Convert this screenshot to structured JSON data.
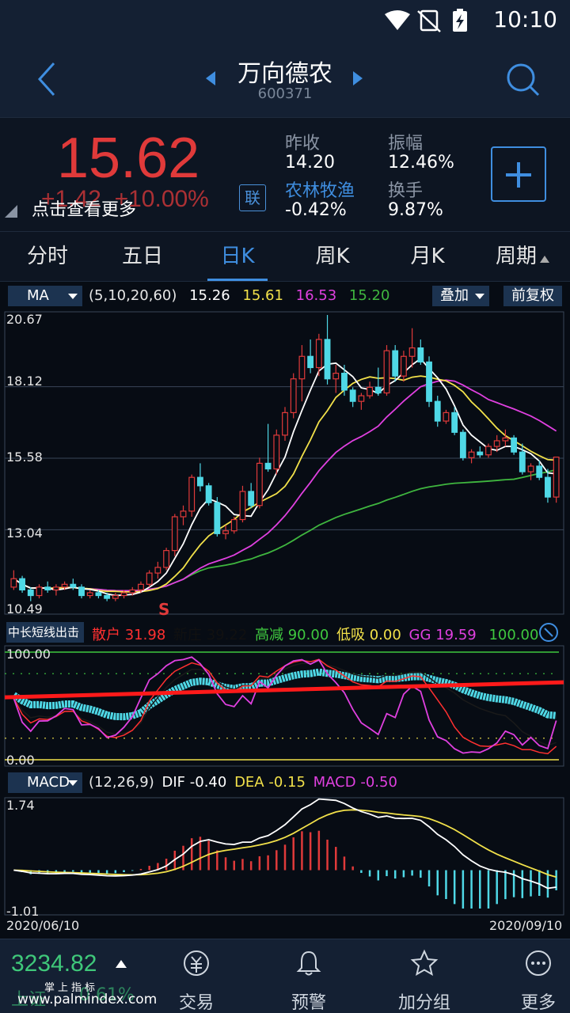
{
  "status_bar": {
    "time": "10:10"
  },
  "header": {
    "title": "万向德农",
    "code": "600371"
  },
  "quote": {
    "price": "15.62",
    "change": "+1.42",
    "change_pct": "+10.00%",
    "more_link": "点击查看更多",
    "link_button": "联",
    "prev_close_label": "昨收",
    "prev_close": "14.20",
    "amplitude_label": "振幅",
    "amplitude": "12.46%",
    "sector_label": "农林牧渔",
    "sector_change": "-0.42%",
    "turnover_label": "换手",
    "turnover": "9.87%"
  },
  "tabs": [
    "分时",
    "五日",
    "日K",
    "周K",
    "月K",
    "周期"
  ],
  "active_tab": "日K",
  "ma_panel": {
    "selector": "MA",
    "params": "(5,10,20,60)",
    "values": [
      "15.26",
      "15.61",
      "16.53",
      "15.20"
    ],
    "colors": [
      "#ffffff",
      "#f2e14a",
      "#e040e0",
      "#3fb63f"
    ],
    "overlay_button": "叠加",
    "adjust_button": "前复权",
    "y_labels": [
      "20.67",
      "18.12",
      "15.58",
      "13.04",
      "10.49"
    ],
    "signal_label": "S"
  },
  "indicator_panel": {
    "selector": "中长短线出击",
    "items": [
      {
        "label": "散户",
        "value": "31.98",
        "color": "#ff3030"
      },
      {
        "label": "新庄",
        "value": "39.22",
        "color": "#1a1a1a"
      },
      {
        "label": "高减",
        "value": "90.00",
        "color": "#3fc83f"
      },
      {
        "label": "低吸",
        "value": "0.00",
        "color": "#f2e14a"
      },
      {
        "label": "GG",
        "value": "19.59",
        "color": "#e040e0"
      },
      {
        "label": "",
        "value": "100.00",
        "color": "#3fc83f"
      }
    ],
    "y_labels": [
      "100.00",
      "0.00"
    ]
  },
  "macd_panel": {
    "selector": "MACD",
    "params": "(12,26,9)",
    "items": [
      {
        "label": "DIF",
        "value": "-0.40",
        "color": "#ffffff"
      },
      {
        "label": "DEA",
        "value": "-0.15",
        "color": "#f2e14a"
      },
      {
        "label": "MACD",
        "value": "-0.50",
        "color": "#e040e0"
      }
    ],
    "y_labels": [
      "1.74",
      "-1.01"
    ],
    "x_labels": [
      "2020/06/10",
      "2020/09/10"
    ]
  },
  "bottom_bar": {
    "index_value": "3234.82",
    "index_name": "上证",
    "index_change": "0.61%",
    "watermark_top": "掌上指标",
    "watermark_url": "www.palmindex.com",
    "items": [
      "交易",
      "预警",
      "加分组",
      "更多"
    ]
  },
  "chart_data": {
    "type": "candlestick",
    "x_range": [
      "2020/06/10",
      "2020/09/10"
    ],
    "ylim": [
      10.49,
      20.67
    ],
    "ohlc": [
      [
        11.0,
        11.6,
        10.9,
        11.3
      ],
      [
        11.3,
        11.4,
        10.8,
        10.9
      ],
      [
        10.9,
        11.0,
        10.5,
        10.7
      ],
      [
        10.7,
        11.1,
        10.6,
        11.0
      ],
      [
        11.0,
        11.2,
        10.8,
        10.9
      ],
      [
        10.9,
        11.1,
        10.7,
        11.0
      ],
      [
        11.0,
        11.2,
        10.9,
        11.1
      ],
      [
        11.1,
        11.3,
        10.9,
        11.0
      ],
      [
        11.0,
        11.1,
        10.6,
        10.7
      ],
      [
        10.7,
        10.9,
        10.6,
        10.8
      ],
      [
        10.8,
        10.9,
        10.6,
        10.7
      ],
      [
        10.7,
        10.8,
        10.5,
        10.6
      ],
      [
        10.6,
        10.8,
        10.5,
        10.7
      ],
      [
        10.7,
        10.9,
        10.6,
        10.8
      ],
      [
        10.8,
        11.0,
        10.7,
        10.9
      ],
      [
        10.9,
        11.2,
        10.8,
        11.1
      ],
      [
        11.1,
        11.6,
        11.0,
        11.5
      ],
      [
        11.5,
        11.9,
        11.3,
        11.7
      ],
      [
        11.7,
        12.4,
        11.6,
        12.3
      ],
      [
        12.3,
        13.6,
        12.1,
        13.5
      ],
      [
        13.5,
        13.9,
        13.2,
        13.7
      ],
      [
        13.7,
        15.0,
        13.5,
        14.9
      ],
      [
        14.9,
        15.4,
        14.4,
        14.6
      ],
      [
        14.6,
        14.7,
        13.9,
        14.0
      ],
      [
        14.0,
        14.2,
        12.8,
        12.9
      ],
      [
        12.9,
        13.2,
        12.7,
        13.0
      ],
      [
        13.0,
        13.5,
        12.9,
        13.4
      ],
      [
        13.4,
        14.6,
        13.3,
        14.4
      ],
      [
        14.4,
        14.7,
        13.8,
        13.9
      ],
      [
        13.9,
        15.6,
        13.8,
        15.4
      ],
      [
        15.4,
        16.8,
        15.1,
        15.2
      ],
      [
        15.2,
        16.6,
        15.0,
        16.4
      ],
      [
        16.4,
        17.4,
        16.2,
        17.2
      ],
      [
        17.2,
        18.6,
        17.0,
        18.4
      ],
      [
        18.4,
        19.6,
        17.6,
        19.2
      ],
      [
        19.2,
        19.8,
        18.6,
        18.8
      ],
      [
        18.8,
        20.0,
        18.5,
        19.8
      ],
      [
        19.8,
        20.67,
        18.2,
        18.4
      ],
      [
        18.4,
        18.9,
        17.9,
        18.6
      ],
      [
        18.6,
        18.9,
        17.8,
        18.0
      ],
      [
        18.0,
        18.1,
        17.4,
        17.6
      ],
      [
        17.6,
        17.9,
        17.3,
        17.8
      ],
      [
        17.8,
        18.3,
        17.7,
        18.1
      ],
      [
        18.1,
        18.8,
        17.8,
        17.9
      ],
      [
        17.9,
        19.6,
        17.8,
        19.4
      ],
      [
        19.4,
        19.6,
        18.3,
        18.5
      ],
      [
        18.5,
        19.4,
        18.3,
        19.2
      ],
      [
        19.2,
        20.2,
        18.8,
        19.5
      ],
      [
        19.5,
        19.8,
        18.9,
        19.0
      ],
      [
        19.0,
        19.2,
        17.4,
        17.6
      ],
      [
        17.6,
        17.8,
        16.7,
        16.9
      ],
      [
        16.9,
        17.3,
        16.8,
        17.2
      ],
      [
        17.2,
        17.4,
        16.4,
        16.5
      ],
      [
        16.5,
        16.6,
        15.5,
        15.6
      ],
      [
        15.6,
        15.9,
        15.4,
        15.8
      ],
      [
        15.8,
        16.0,
        15.6,
        15.7
      ],
      [
        15.7,
        16.1,
        15.6,
        16.0
      ],
      [
        16.0,
        16.4,
        15.8,
        16.2
      ],
      [
        16.2,
        16.6,
        16.0,
        16.3
      ],
      [
        16.3,
        16.4,
        15.7,
        15.8
      ],
      [
        15.8,
        16.1,
        15.0,
        15.1
      ],
      [
        15.1,
        15.4,
        14.8,
        15.3
      ],
      [
        15.3,
        15.5,
        14.8,
        14.9
      ],
      [
        14.9,
        15.2,
        14.0,
        14.2
      ],
      [
        14.2,
        15.62,
        14.0,
        15.62
      ]
    ]
  }
}
